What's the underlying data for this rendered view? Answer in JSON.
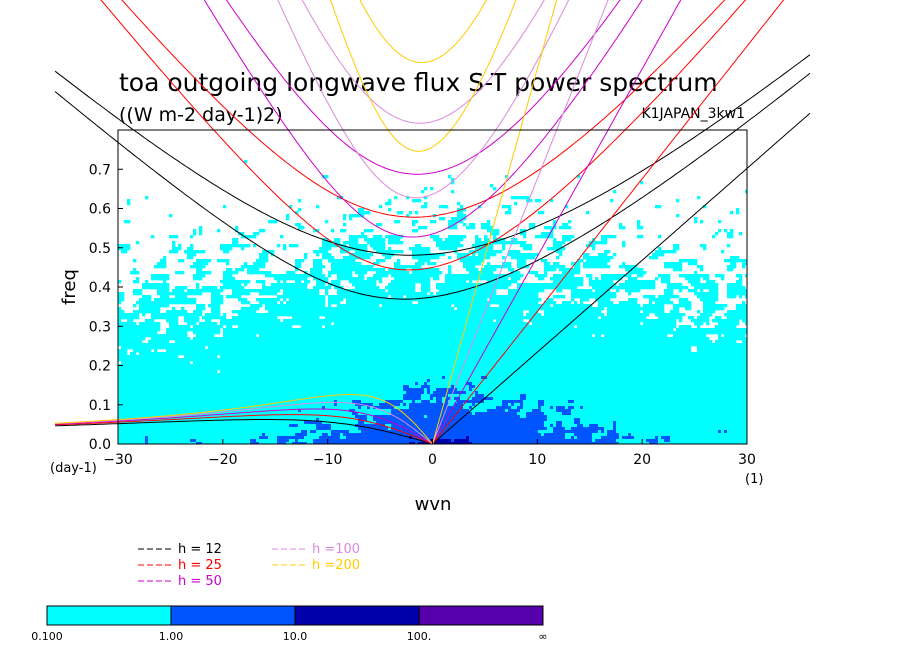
{
  "chart_data": {
    "type": "heatmap",
    "title": "toa outgoing longwave flux S-T power spectrum",
    "subtitle": "((W m-2 day-1)2)",
    "run_label": "K1JAPAN_3kw1",
    "xlabel": "wvn",
    "ylabel": "freq",
    "x_unit": "(1)",
    "y_unit": "(day-1)",
    "xlim": [
      -30,
      30
    ],
    "ylim": [
      0,
      0.8
    ],
    "x_ticks": [
      -30,
      -20,
      -10,
      0,
      10,
      20,
      30
    ],
    "x_tick_labels": [
      "−30",
      "−20",
      "−10",
      "0",
      "10",
      "20",
      "30"
    ],
    "y_ticks": [
      0,
      0.1,
      0.2,
      0.3,
      0.4,
      0.5,
      0.6,
      0.7
    ],
    "y_tick_labels": [
      "0.0",
      "0.1",
      "0.2",
      "0.3",
      "0.4",
      "0.5",
      "0.6",
      "0.7"
    ],
    "colorbar": {
      "levels": [
        "0.100",
        "1.00",
        "10.0",
        "100.",
        "∞"
      ],
      "colors": [
        "#00ffff",
        "#0055ff",
        "#0000aa",
        "#5500aa"
      ]
    },
    "dispersion_curves": [
      {
        "label": "h = 12",
        "equivalent_depth": 12,
        "color": "#000000"
      },
      {
        "label": "h = 25",
        "equivalent_depth": 25,
        "color": "#ff0000"
      },
      {
        "label": "h = 50",
        "equivalent_depth": 50,
        "color": "#cc00cc"
      },
      {
        "label": "h =100",
        "equivalent_depth": 100,
        "color": "#dd88dd"
      },
      {
        "label": "h =200",
        "equivalent_depth": 200,
        "color": "#ffcc00"
      }
    ]
  }
}
